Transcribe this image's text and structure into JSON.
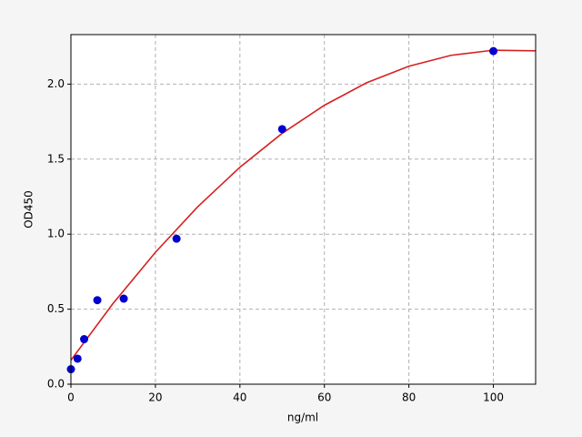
{
  "chart_data": {
    "type": "scatter",
    "x_label": "ng/ml",
    "y_label": "OD450",
    "xlim": [
      0,
      110
    ],
    "ylim": [
      0,
      2.33
    ],
    "xticks": [
      0,
      20,
      40,
      60,
      80,
      100
    ],
    "yticks": [
      {
        "value": 0,
        "label": "0.0"
      },
      {
        "value": 0.5,
        "label": "0.5"
      },
      {
        "value": 1,
        "label": "1.0"
      },
      {
        "value": 1.5,
        "label": "1.5"
      },
      {
        "value": 2,
        "label": "2.0"
      }
    ],
    "grid": true,
    "series": [
      {
        "mode": "line",
        "color": "#d62020",
        "x": [
          0,
          10,
          20,
          30,
          40,
          50,
          60,
          70,
          80,
          90,
          100,
          110
        ],
        "values": [
          0.16,
          0.539,
          0.879,
          1.182,
          1.446,
          1.672,
          1.859,
          2.009,
          2.119,
          2.192,
          2.226,
          2.222
        ]
      },
      {
        "mode": "markers",
        "color": "#0000cc",
        "x": [
          0,
          1.56,
          3.125,
          6.25,
          12.5,
          25,
          50,
          100
        ],
        "values": [
          0.1,
          0.17,
          0.3,
          0.56,
          0.57,
          0.97,
          1.7,
          2.22
        ]
      }
    ]
  }
}
